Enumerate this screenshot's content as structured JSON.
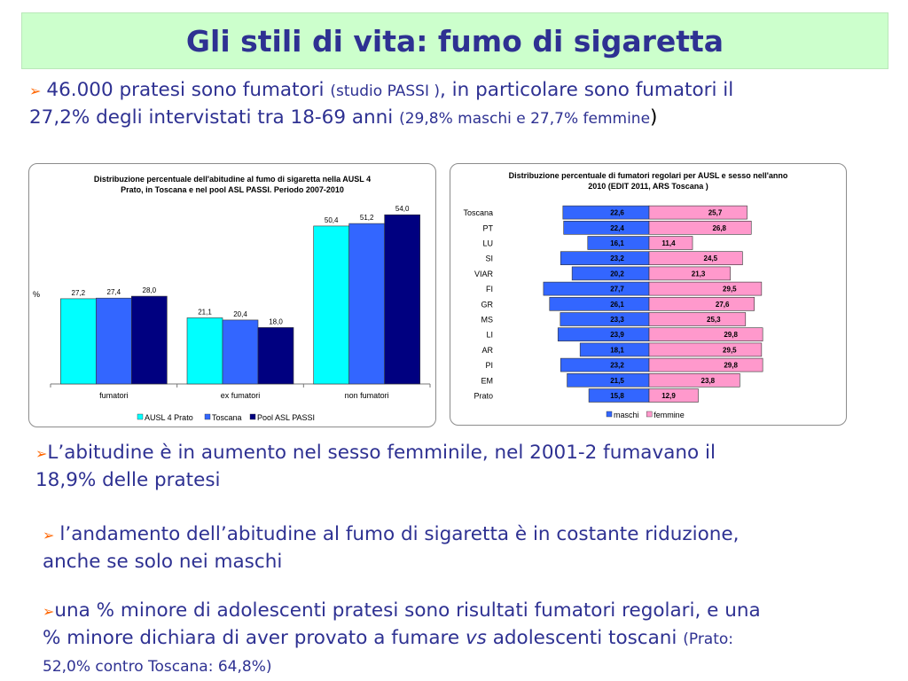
{
  "title": "Gli stili di vita: fumo di sigaretta",
  "bullets": {
    "b1": {
      "arrow": "➢",
      "t1": "46.000 pratesi sono fumatori ",
      "t2": "(studio PASSI )",
      "t3": ", in particolare sono fumatori il",
      "t4": "27,2% degli intervistati tra 18-69 anni ",
      "t5": "(29,8% maschi e 27,7% femmine",
      "t6": ")"
    },
    "b2": {
      "arrow": "➢",
      "line1": "L’abitudine è in aumento nel sesso femminile, nel 2001-2 fumavano il",
      "line2": "18,9% delle pratesi"
    },
    "b3": {
      "arrow": "➢",
      "line1": "l’andamento dell’abitudine al fumo di sigaretta è in costante riduzione,",
      "line2": "anche se solo nei maschi"
    },
    "b4": {
      "arrow": "➢",
      "line1": "una % minore di adolescenti pratesi sono risultati fumatori regolari, e una",
      "t1": "% minore dichiara di aver provato a fumare ",
      "vs": "vs",
      "t2": " adolescenti toscani ",
      "t3": "(Prato:",
      "line3": "52,0% contro Toscana: 64,8%)"
    }
  },
  "colors": {
    "ausl": "#00ffff",
    "toscana": "#3366ff",
    "pool": "#000080",
    "maschi": "#3366ff",
    "femmine": "#ff99cc",
    "accent": "#ff6600",
    "text": "#2e3192"
  },
  "chart_data": [
    {
      "type": "bar",
      "title_lines": [
        "Distribuzione percentuale dell'abitudine al fumo di sigaretta nella AUSL 4",
        "Prato, in Toscana e nel pool ASL PASSI. Periodo 2007-2010"
      ],
      "ylabel": "%",
      "ylim": [
        0,
        60
      ],
      "categories": [
        "fumatori",
        "ex fumatori",
        "non fumatori"
      ],
      "series": [
        {
          "name": "AUSL 4 Prato",
          "values": [
            27.2,
            21.1,
            50.4
          ],
          "labels": [
            "27,2",
            "21,1",
            "50,4"
          ]
        },
        {
          "name": "Toscana",
          "values": [
            27.4,
            20.4,
            51.2
          ],
          "labels": [
            "27,4",
            "20,4",
            "51,2"
          ]
        },
        {
          "name": "Pool ASL PASSI",
          "values": [
            28.0,
            18.0,
            54.0
          ],
          "labels": [
            "28,0",
            "18,0",
            "54,0"
          ]
        }
      ],
      "legend_position": "bottom"
    },
    {
      "type": "bar",
      "orientation": "horizontal-diverging",
      "title_lines": [
        "Distribuzione percentuale di fumatori regolari per AUSL e sesso nell'anno",
        "2010 (EDIT 2011, ARS Toscana )"
      ],
      "categories": [
        "Toscana",
        "PT",
        "LU",
        "SI",
        "VIAR",
        "FI",
        "GR",
        "MS",
        "LI",
        "AR",
        "PI",
        "EM",
        "Prato"
      ],
      "series": [
        {
          "name": "maschi",
          "values": [
            22.6,
            22.4,
            16.1,
            23.2,
            20.2,
            27.7,
            26.1,
            23.3,
            23.9,
            18.1,
            23.2,
            21.5,
            15.8
          ],
          "labels": [
            "22,6",
            "22,4",
            "16,1",
            "23,2",
            "20,2",
            "27,7",
            "26,1",
            "23,3",
            "23,9",
            "18,1",
            "23,2",
            "21,5",
            "15,8"
          ]
        },
        {
          "name": "femmine",
          "values": [
            25.7,
            26.8,
            11.4,
            24.5,
            21.3,
            29.5,
            27.6,
            25.3,
            29.8,
            29.5,
            29.8,
            23.8,
            12.9
          ],
          "labels": [
            "25,7",
            "26,8",
            "11,4",
            "24,5",
            "21,3",
            "29,5",
            "27,6",
            "25,3",
            "29,8",
            "29,5",
            "29,8",
            "23,8",
            "12,9"
          ]
        }
      ],
      "legend_position": "bottom"
    }
  ]
}
